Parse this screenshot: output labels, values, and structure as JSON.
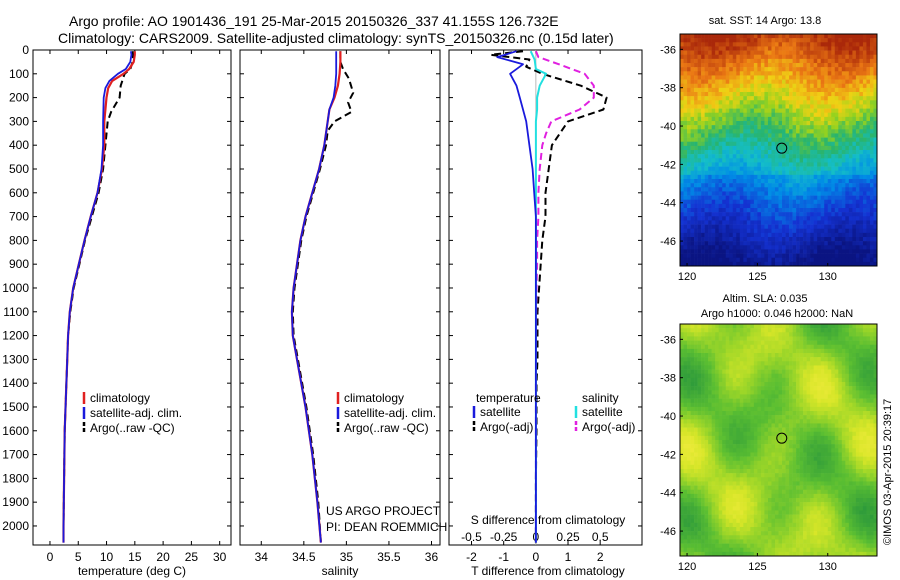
{
  "header": {
    "line1": "Argo profile: AO 1901436_191 25-Mar-2015 20150326_337 41.155S 126.732E",
    "line2": "Climatology: CARS2009. Satellite-adjusted climatology: synTS_20150326.nc (0.15d later)"
  },
  "depth_ticks": [
    "0",
    "100",
    "200",
    "300",
    "400",
    "500",
    "600",
    "700",
    "800",
    "900",
    "1000",
    "1100",
    "1200",
    "1300",
    "1400",
    "1500",
    "1600",
    "1700",
    "1800",
    "1900",
    "2000"
  ],
  "colors": {
    "climatology": "#e02020",
    "satellite": "#1a1adc",
    "argo": "#000000",
    "sat_salinity": "#22e0e0",
    "argo_salinity": "#e020e0"
  },
  "chart_data": [
    {
      "type": "line",
      "xlabel": "temperature (deg C)",
      "xlim": [
        -3,
        32
      ],
      "ylim": [
        0,
        2080
      ],
      "xticks": [
        0,
        5,
        10,
        15,
        20,
        25,
        30
      ],
      "legend": [
        "climatology",
        "satellite-adj. clim.",
        "Argo(..raw -QC)"
      ],
      "series": [
        {
          "name": "climatology",
          "depth": [
            5,
            20,
            50,
            80,
            100,
            130,
            160,
            200,
            300,
            400,
            500,
            600,
            700,
            800,
            900,
            1000,
            1100,
            1200,
            1400,
            1600,
            1800,
            2000,
            2070
          ],
          "values": [
            15.0,
            15.0,
            14.8,
            14.0,
            13.0,
            11.0,
            10.3,
            10.0,
            9.6,
            9.6,
            9.2,
            8.4,
            7.2,
            6.1,
            5.1,
            4.1,
            3.5,
            3.2,
            2.9,
            2.6,
            2.5,
            2.4,
            2.4
          ]
        },
        {
          "name": "satellite",
          "depth": [
            5,
            20,
            50,
            80,
            100,
            130,
            160,
            200,
            300,
            400,
            500,
            600,
            700,
            800,
            900,
            1000,
            1100,
            1200,
            1400,
            1600,
            1800,
            2000,
            2070
          ],
          "values": [
            14.3,
            14.4,
            14.2,
            13.4,
            12.0,
            10.5,
            9.8,
            9.5,
            9.4,
            9.4,
            9.1,
            8.4,
            7.2,
            6.1,
            5.1,
            4.1,
            3.5,
            3.2,
            2.9,
            2.6,
            2.5,
            2.4,
            2.4
          ]
        },
        {
          "name": "Argo",
          "depth": [
            5,
            20,
            50,
            80,
            100,
            150,
            200,
            260,
            300,
            400,
            500,
            600,
            700,
            800,
            900,
            1000,
            1100,
            1200,
            1400,
            1600,
            1800,
            2000,
            2070
          ],
          "values": [
            14.6,
            14.7,
            14.6,
            14.2,
            13.2,
            12.5,
            12.3,
            10.8,
            10.2,
            9.8,
            9.4,
            8.6,
            7.4,
            6.2,
            5.2,
            4.2,
            3.6,
            3.2,
            2.9,
            2.6,
            2.5,
            2.4,
            2.4
          ]
        }
      ]
    },
    {
      "type": "line",
      "xlabel": "salinity",
      "xlim": [
        33.75,
        36.1
      ],
      "ylim": [
        0,
        2080
      ],
      "xticks": [
        34,
        34.5,
        35,
        35.5,
        36
      ],
      "xticklabels": [
        "34",
        "34.5",
        "35",
        "35.5",
        "36"
      ],
      "legend": [
        "climatology",
        "satellite-adj. clim.",
        "Argo(..raw -QC)"
      ],
      "annotation": [
        "US ARGO PROJECT",
        "PI: DEAN ROEMMICH"
      ],
      "series": [
        {
          "name": "climatology",
          "depth": [
            5,
            50,
            100,
            150,
            200,
            250,
            300,
            400,
            500,
            600,
            700,
            800,
            900,
            1000,
            1100,
            1200,
            1300,
            1500,
            1700,
            1900,
            2070
          ],
          "values": [
            34.93,
            34.93,
            34.92,
            34.9,
            34.86,
            34.8,
            34.78,
            34.74,
            34.68,
            34.6,
            34.52,
            34.46,
            34.42,
            34.38,
            34.36,
            34.37,
            34.42,
            34.52,
            34.6,
            34.66,
            34.7
          ]
        },
        {
          "name": "satellite",
          "depth": [
            5,
            50,
            100,
            150,
            200,
            250,
            300,
            400,
            500,
            600,
            700,
            800,
            900,
            1000,
            1100,
            1200,
            1300,
            1500,
            1700,
            1900,
            2070
          ],
          "values": [
            34.88,
            34.88,
            34.88,
            34.87,
            34.85,
            34.8,
            34.78,
            34.74,
            34.68,
            34.6,
            34.52,
            34.46,
            34.42,
            34.38,
            34.36,
            34.37,
            34.42,
            34.52,
            34.6,
            34.66,
            34.7
          ]
        },
        {
          "name": "Argo",
          "depth": [
            5,
            50,
            80,
            120,
            180,
            220,
            260,
            300,
            340,
            400,
            500,
            600,
            700,
            800,
            900,
            1000,
            1100,
            1200,
            1300,
            1500,
            1700,
            1900,
            2070
          ],
          "values": [
            34.93,
            34.93,
            34.96,
            35.03,
            35.08,
            35.02,
            35.06,
            34.86,
            34.78,
            34.76,
            34.69,
            34.61,
            34.53,
            34.47,
            34.43,
            34.39,
            34.37,
            34.38,
            34.43,
            34.53,
            34.61,
            34.67,
            34.7
          ]
        }
      ]
    },
    {
      "type": "line",
      "xlabel": "T difference from climatology",
      "xlabel_top": "S difference from climatology",
      "xlim": [
        -2.7,
        3.3
      ],
      "ylim": [
        0,
        2080
      ],
      "xticks": [
        -2,
        -1,
        0,
        1,
        2
      ],
      "xticks_top": [
        -0.5,
        -0.25,
        0,
        0.25,
        0.5
      ],
      "legend_left": [
        "temperature",
        "satellite",
        "Argo(-adj)"
      ],
      "legend_right": [
        "salinity",
        "satellite",
        "Argo(-adj)"
      ],
      "series": [
        {
          "name": "T satellite",
          "depth": [
            5,
            30,
            60,
            100,
            150,
            200,
            300,
            400,
            500,
            600,
            700,
            800,
            900,
            1000,
            1200,
            1500,
            1800,
            2070
          ],
          "values": [
            -0.6,
            -1.2,
            -0.4,
            -0.8,
            -0.6,
            -0.5,
            -0.3,
            -0.2,
            -0.1,
            -0.05,
            0,
            0,
            0,
            0,
            0,
            0,
            0,
            0
          ]
        },
        {
          "name": "T Argo",
          "depth": [
            5,
            20,
            40,
            70,
            100,
            150,
            200,
            250,
            300,
            400,
            500,
            600,
            700,
            800,
            900,
            1000,
            1100,
            1200,
            1300,
            1400,
            1600,
            1800,
            2070
          ],
          "values": [
            -0.4,
            -1.4,
            -0.2,
            -0.3,
            0.2,
            1.4,
            2.2,
            2.1,
            1.0,
            0.5,
            0.4,
            0.3,
            0.3,
            0.2,
            0.15,
            0.1,
            0.05,
            0.05,
            0.05,
            0.02,
            0.02,
            0,
            0
          ]
        },
        {
          "name": "S satellite",
          "depth": [
            5,
            40,
            80,
            100,
            150,
            200,
            250,
            300,
            400,
            500,
            600,
            700,
            800,
            900,
            1000,
            1200,
            1500,
            1800,
            2070
          ],
          "values": [
            -0.04,
            -0.01,
            0.0,
            0.08,
            0.03,
            0.01,
            0.01,
            0.0,
            0.0,
            0.0,
            0.0,
            0.0,
            0.0,
            0.0,
            0.0,
            0.0,
            0.0,
            0.0,
            0.0
          ]
        },
        {
          "name": "S Argo",
          "depth": [
            5,
            30,
            60,
            100,
            150,
            200,
            250,
            300,
            350,
            400,
            500,
            600,
            700,
            800,
            900,
            1000,
            1100,
            1200,
            1400,
            1600,
            1800,
            2070
          ],
          "values": [
            0.0,
            0.02,
            0.18,
            0.38,
            0.45,
            0.45,
            0.34,
            0.12,
            0.08,
            0.05,
            0.03,
            0.02,
            0.02,
            0.01,
            0.01,
            0.005,
            0.003,
            0.002,
            0.0,
            0.0,
            0.0,
            0.0
          ]
        }
      ]
    }
  ],
  "maps": {
    "sst": {
      "title": "sat. SST: 14 Argo: 13.8",
      "yticks": [
        "-36",
        "-38",
        "-40",
        "-42",
        "-44",
        "-46"
      ],
      "xticks": [
        "120",
        "125",
        "130"
      ],
      "marker_lat": -41.155,
      "marker_lon": 126.732
    },
    "sla": {
      "title1": "Altim. SLA: 0.035",
      "title2": "Argo h1000: 0.046 h2000: NaN",
      "yticks": [
        "-36",
        "-38",
        "-40",
        "-42",
        "-44",
        "-46"
      ],
      "xticks": [
        "120",
        "125",
        "130"
      ],
      "marker_lat": -41.155,
      "marker_lon": 126.732
    }
  },
  "imos_note": "©IMOS 03-Apr-2015 20:39:17"
}
